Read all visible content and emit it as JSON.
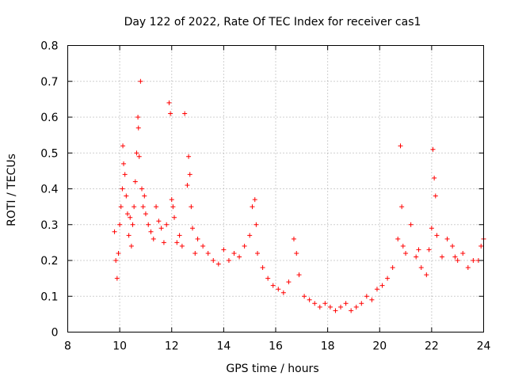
{
  "chart_data": {
    "type": "scatter",
    "title": "Day 122 of 2022, Rate Of TEC Index for receiver cas1",
    "xlabel": "GPS time / hours",
    "ylabel": "ROTI / TECUs",
    "xlim": [
      8,
      24
    ],
    "ylim": [
      0,
      0.8
    ],
    "xticks": [
      8,
      10,
      12,
      14,
      16,
      18,
      20,
      22,
      24
    ],
    "yticks": [
      0,
      0.1,
      0.2,
      0.3,
      0.4,
      0.5,
      0.6,
      0.7,
      0.8
    ],
    "grid": true,
    "marker": "+",
    "color": "#ff0000",
    "series": [
      {
        "name": "ROTI",
        "x": [
          9.8,
          9.85,
          9.9,
          9.95,
          10.0,
          10.05,
          10.1,
          10.12,
          10.15,
          10.2,
          10.25,
          10.3,
          10.35,
          10.4,
          10.45,
          10.5,
          10.55,
          10.6,
          10.65,
          10.7,
          10.72,
          10.75,
          10.8,
          10.85,
          10.9,
          10.95,
          11.0,
          11.1,
          11.2,
          11.3,
          11.4,
          11.5,
          11.6,
          11.7,
          11.8,
          11.9,
          11.95,
          12.0,
          12.05,
          12.1,
          12.2,
          12.3,
          12.4,
          12.5,
          12.6,
          12.65,
          12.7,
          12.75,
          12.8,
          12.9,
          13.0,
          13.2,
          13.4,
          13.6,
          13.8,
          14.0,
          14.2,
          14.4,
          14.6,
          14.8,
          15.0,
          15.1,
          15.2,
          15.25,
          15.3,
          15.5,
          15.7,
          15.9,
          16.1,
          16.3,
          16.5,
          16.7,
          16.8,
          16.9,
          17.1,
          17.3,
          17.5,
          17.7,
          17.9,
          18.1,
          18.3,
          18.5,
          18.7,
          18.9,
          19.1,
          19.3,
          19.5,
          19.7,
          19.9,
          20.1,
          20.3,
          20.5,
          20.7,
          20.8,
          20.85,
          20.9,
          21.0,
          21.2,
          21.4,
          21.5,
          21.6,
          21.8,
          21.9,
          22.0,
          22.05,
          22.1,
          22.15,
          22.2,
          22.4,
          22.6,
          22.8,
          22.9,
          23.0,
          23.2,
          23.4,
          23.6,
          23.8,
          23.9,
          24.0
        ],
        "values": [
          0.28,
          0.2,
          0.15,
          0.22,
          0.3,
          0.35,
          0.4,
          0.52,
          0.47,
          0.44,
          0.38,
          0.33,
          0.27,
          0.32,
          0.24,
          0.3,
          0.35,
          0.42,
          0.5,
          0.6,
          0.57,
          0.49,
          0.7,
          0.4,
          0.35,
          0.38,
          0.33,
          0.3,
          0.28,
          0.26,
          0.35,
          0.31,
          0.29,
          0.25,
          0.3,
          0.64,
          0.61,
          0.37,
          0.35,
          0.32,
          0.25,
          0.27,
          0.24,
          0.61,
          0.41,
          0.49,
          0.44,
          0.35,
          0.29,
          0.22,
          0.26,
          0.24,
          0.22,
          0.2,
          0.19,
          0.23,
          0.2,
          0.22,
          0.21,
          0.24,
          0.27,
          0.35,
          0.37,
          0.3,
          0.22,
          0.18,
          0.15,
          0.13,
          0.12,
          0.11,
          0.14,
          0.26,
          0.22,
          0.16,
          0.1,
          0.09,
          0.08,
          0.07,
          0.08,
          0.07,
          0.06,
          0.07,
          0.08,
          0.06,
          0.07,
          0.08,
          0.1,
          0.09,
          0.12,
          0.13,
          0.15,
          0.18,
          0.26,
          0.52,
          0.35,
          0.24,
          0.22,
          0.3,
          0.21,
          0.23,
          0.18,
          0.16,
          0.23,
          0.29,
          0.51,
          0.43,
          0.38,
          0.27,
          0.21,
          0.26,
          0.24,
          0.21,
          0.2,
          0.22,
          0.18,
          0.2,
          0.2,
          0.24,
          0.26
        ]
      }
    ]
  }
}
